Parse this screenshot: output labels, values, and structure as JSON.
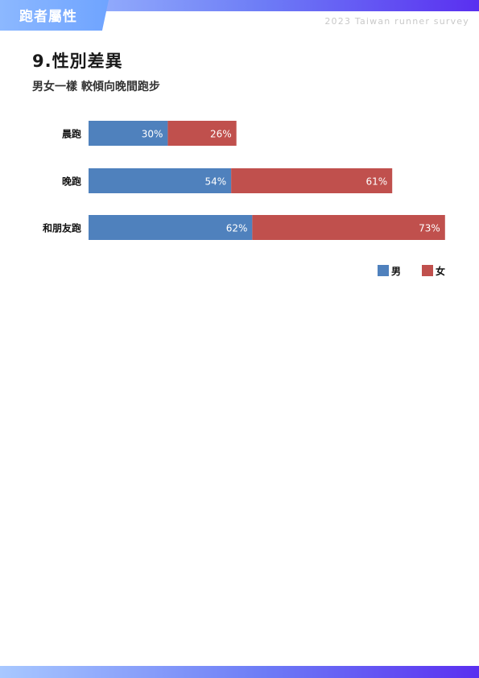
{
  "header": {
    "section": "跑者屬性",
    "survey": "2023 Taiwan runner survey"
  },
  "page": {
    "title": "9.性別差異",
    "subtitle": "男女一樣 較傾向晚間跑步"
  },
  "colors": {
    "male": "#4f81bd",
    "female": "#c0504d",
    "header_gradient_start": "#a8c8ff",
    "header_gradient_end": "#5a2ff0"
  },
  "chart_data": {
    "type": "bar",
    "orientation": "horizontal",
    "stacked": true,
    "categories": [
      "晨跑",
      "晚跑",
      "和朋友跑"
    ],
    "series": [
      {
        "name": "男",
        "values": [
          30,
          54,
          62
        ],
        "labels": [
          "30%",
          "54%",
          "62%"
        ]
      },
      {
        "name": "女",
        "values": [
          26,
          61,
          73
        ],
        "labels": [
          "26%",
          "61%",
          "73%"
        ]
      }
    ],
    "unit": "%",
    "xlim": [
      0,
      135
    ],
    "legend": "bottom-right",
    "grid": false
  }
}
